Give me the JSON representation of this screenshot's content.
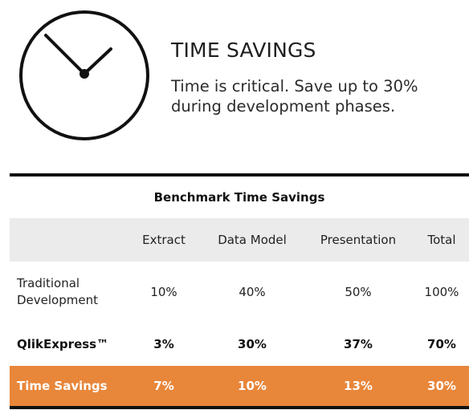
{
  "hero": {
    "icon": "clock-icon",
    "title": "TIME SAVINGS",
    "subtitle_lines": [
      "Time is critical. Save up to 30%",
      "during development phases."
    ]
  },
  "table": {
    "caption": "Benchmark Time Savings",
    "columns": [
      "",
      "Extract",
      "Data Model",
      "Presentation",
      "Total"
    ],
    "rows": [
      {
        "label_lines": [
          "Traditional",
          "Development"
        ],
        "values": [
          "10%",
          "40%",
          "50%",
          "100%"
        ]
      },
      {
        "label": "QlikExpress™",
        "values": [
          "3%",
          "30%",
          "37%",
          "70%"
        ]
      },
      {
        "label": "Time Savings",
        "values": [
          "7%",
          "10%",
          "13%",
          "30%"
        ]
      }
    ],
    "highlight_color": "#e8863a"
  }
}
